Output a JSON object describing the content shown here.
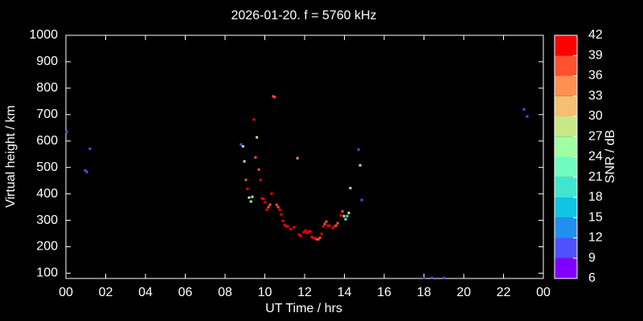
{
  "chart_data": {
    "type": "scatter",
    "title": "2026-01-20. f = 5760 kHz",
    "x_label": "UT Time / hrs",
    "y_label": "Virtual height / km",
    "colorbar_label": "SNR / dB",
    "x": [
      0.04,
      0.97,
      1.05,
      1.21,
      8.8,
      8.9,
      8.97,
      9.05,
      9.13,
      9.21,
      9.3,
      9.37,
      9.45,
      9.53,
      9.6,
      9.7,
      9.78,
      9.86,
      9.94,
      10.02,
      10.1,
      10.18,
      10.26,
      10.34,
      10.42,
      10.5,
      10.59,
      10.67,
      10.75,
      10.83,
      10.91,
      10.99,
      11.07,
      11.15,
      11.31,
      11.47,
      11.64,
      11.72,
      11.8,
      11.96,
      12.04,
      12.12,
      12.2,
      12.28,
      12.36,
      12.44,
      12.53,
      12.61,
      12.69,
      12.77,
      12.85,
      12.93,
      13.01,
      13.09,
      13.17,
      13.25,
      13.41,
      13.49,
      13.58,
      13.66,
      13.82,
      13.9,
      13.98,
      14.06,
      14.14,
      14.22,
      14.3,
      14.71,
      14.79,
      14.87,
      18.0,
      18.4,
      19.0,
      23.03,
      23.19
    ],
    "values": [
      635,
      489,
      483,
      571,
      587,
      580,
      523,
      453,
      419,
      386,
      371,
      389,
      681,
      538,
      614,
      492,
      453,
      383,
      380,
      368,
      340,
      350,
      359,
      401,
      769,
      766,
      359,
      350,
      340,
      322,
      298,
      283,
      277,
      277,
      267,
      274,
      535,
      246,
      240,
      255,
      261,
      252,
      258,
      258,
      237,
      234,
      231,
      228,
      228,
      234,
      249,
      277,
      286,
      295,
      280,
      280,
      271,
      277,
      280,
      289,
      319,
      334,
      316,
      304,
      316,
      328,
      422,
      568,
      508,
      377,
      82,
      82,
      82,
      720,
      693
    ],
    "snr": [
      10,
      10,
      10,
      10,
      10,
      26,
      26,
      38,
      40,
      28,
      24,
      26,
      39,
      38,
      27,
      37,
      40,
      40,
      40,
      40,
      39,
      38,
      38,
      39,
      36,
      38,
      38,
      38,
      40,
      40,
      40,
      41,
      41,
      41,
      41,
      40,
      34,
      40,
      40,
      40,
      40,
      41,
      40,
      41,
      40,
      40,
      39,
      38,
      36,
      38,
      39,
      39,
      37,
      38,
      40,
      39,
      40,
      40,
      38,
      38,
      39,
      38,
      25,
      22,
      20,
      24,
      26,
      10,
      24,
      10,
      10,
      10,
      10,
      10,
      10
    ],
    "xlim": [
      0,
      24
    ],
    "xticks": [
      {
        "value": 0,
        "label": "00"
      },
      {
        "value": 2,
        "label": "02"
      },
      {
        "value": 4,
        "label": "04"
      },
      {
        "value": 6,
        "label": "06"
      },
      {
        "value": 8,
        "label": "08"
      },
      10,
      12,
      14,
      16,
      18,
      20,
      22,
      {
        "value": 24,
        "label": "00"
      }
    ],
    "ylim": [
      80,
      1000
    ],
    "yticks": [
      100,
      200,
      300,
      400,
      500,
      600,
      700,
      800,
      900,
      1000
    ],
    "clim": [
      6,
      42
    ],
    "cticks": [
      6,
      9,
      12,
      15,
      18,
      21,
      24,
      27,
      30,
      33,
      36,
      39,
      42
    ],
    "colormap": [
      "#8000ff",
      "#5050ff",
      "#2090f0",
      "#10c4e4",
      "#40e6d0",
      "#70fcc0",
      "#a0ffa0",
      "#c8e888",
      "#f2c070",
      "#ff9050",
      "#ff5030",
      "#ff0000"
    ],
    "background": "#000000"
  }
}
